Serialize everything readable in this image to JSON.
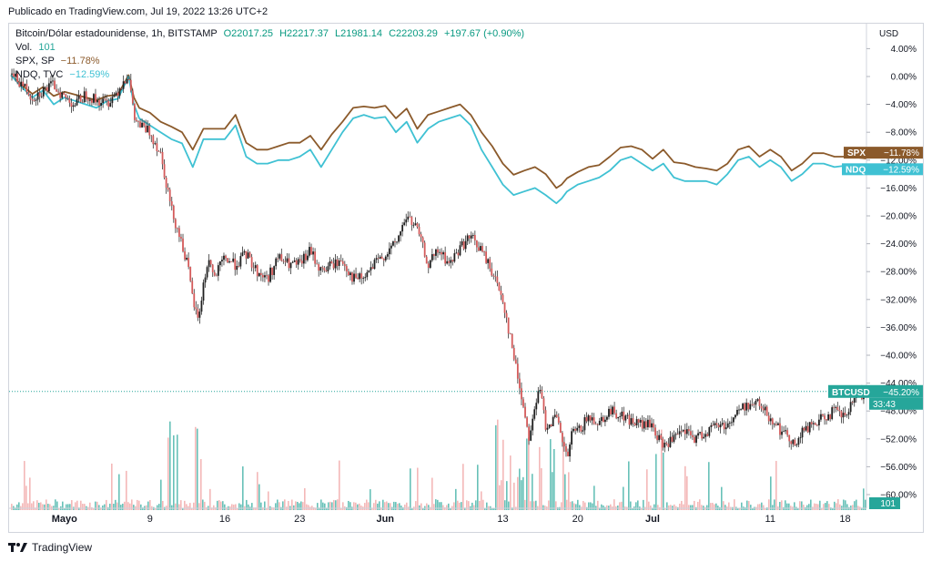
{
  "header": {
    "published": "Publicado en TradingView.com, Jul 19, 2022 13:26 UTC+2"
  },
  "legend": {
    "main": {
      "name": "Bitcoin/Dólar estadounidense, 1h, BITSTAMP",
      "open": "O22017.25",
      "high": "H22217.37",
      "low": "L21981.14",
      "close": "C22203.29",
      "change": "+197.67 (+0.90%)"
    },
    "vol": {
      "label": "Vol.",
      "value": "101"
    },
    "spx": {
      "label": "SPX, SP",
      "value": "−11.78%"
    },
    "ndq": {
      "label": "NDQ, TVC",
      "value": "−12.59%"
    }
  },
  "footer": {
    "brand": "TradingView"
  },
  "colors": {
    "btc": "#1f1f1f",
    "spx": "#8b5a2b",
    "ndq": "#3fc1d3",
    "last_price": "#26a69a",
    "vol_up": "#26a69a",
    "vol_down": "#ef9a9a"
  },
  "chart_data": {
    "type": "line",
    "title": "Bitcoin/Dólar estadounidense, 1h, BITSTAMP",
    "mode": "percentage",
    "currency_label": "USD",
    "ylim": [
      -62,
      6
    ],
    "y_ticks": [
      4,
      0,
      -4,
      -8,
      -12,
      -16,
      -20,
      -24,
      -28,
      -32,
      -36,
      -40,
      -44,
      -48,
      -52,
      -56,
      -60
    ],
    "y_tick_labels": [
      "4.00%",
      "0.00%",
      "−4.00%",
      "−8.00%",
      "−12.00%",
      "−16.00%",
      "−20.00%",
      "−24.00%",
      "−28.00%",
      "−32.00%",
      "−36.00%",
      "−40.00%",
      "−44.00%",
      "−48.00%",
      "−52.00%",
      "−56.00%",
      "−60.00%"
    ],
    "xlim": [
      0,
      80
    ],
    "x_ticks": [
      {
        "day": 5,
        "label": "Mayo",
        "bold": true
      },
      {
        "day": 13,
        "label": "9",
        "bold": false
      },
      {
        "day": 20,
        "label": "16",
        "bold": false
      },
      {
        "day": 27,
        "label": "23",
        "bold": false
      },
      {
        "day": 35,
        "label": "Jun",
        "bold": true
      },
      {
        "day": 46,
        "label": "13",
        "bold": false
      },
      {
        "day": 53,
        "label": "20",
        "bold": false
      },
      {
        "day": 60,
        "label": "Jul",
        "bold": true
      },
      {
        "day": 71,
        "label": "11",
        "bold": false
      },
      {
        "day": 78,
        "label": "18",
        "bold": false
      }
    ],
    "series": [
      {
        "name": "BTCUSD",
        "kind": "candles",
        "color": "#1f1f1f",
        "points": [
          [
            0,
            0.3
          ],
          [
            1,
            -1
          ],
          [
            2,
            -3
          ],
          [
            3,
            -2
          ],
          [
            4,
            -1.2
          ],
          [
            5,
            -3
          ],
          [
            6,
            -4
          ],
          [
            7,
            -2.5
          ],
          [
            8,
            -3.5
          ],
          [
            9,
            -3.8
          ],
          [
            10,
            -2
          ],
          [
            11,
            0.5
          ],
          [
            11.5,
            -6
          ],
          [
            12,
            -7
          ],
          [
            13,
            -8
          ],
          [
            14,
            -11
          ],
          [
            14.5,
            -15
          ],
          [
            15,
            -19
          ],
          [
            16,
            -24
          ],
          [
            16.5,
            -27
          ],
          [
            17,
            -32
          ],
          [
            17.5,
            -35
          ],
          [
            18,
            -30
          ],
          [
            18.5,
            -26
          ],
          [
            19,
            -29
          ],
          [
            20,
            -26
          ],
          [
            21,
            -27
          ],
          [
            22,
            -25.5
          ],
          [
            23,
            -28
          ],
          [
            24,
            -29
          ],
          [
            25,
            -26
          ],
          [
            26,
            -27
          ],
          [
            27,
            -27
          ],
          [
            28,
            -25
          ],
          [
            29,
            -28
          ],
          [
            30,
            -27
          ],
          [
            31,
            -26.5
          ],
          [
            32,
            -29
          ],
          [
            33,
            -29
          ],
          [
            34,
            -27
          ],
          [
            35,
            -25.5
          ],
          [
            36,
            -24
          ],
          [
            37,
            -20
          ],
          [
            38,
            -22
          ],
          [
            39,
            -27
          ],
          [
            40,
            -25
          ],
          [
            41,
            -27
          ],
          [
            42,
            -24.5
          ],
          [
            43,
            -23
          ],
          [
            44,
            -25
          ],
          [
            45,
            -28
          ],
          [
            46,
            -32
          ],
          [
            46.5,
            -36
          ],
          [
            47,
            -40
          ],
          [
            47.5,
            -44
          ],
          [
            48,
            -48
          ],
          [
            48.5,
            -52
          ],
          [
            49,
            -47
          ],
          [
            49.5,
            -45
          ],
          [
            50,
            -50
          ],
          [
            51,
            -49
          ],
          [
            51.5,
            -52
          ],
          [
            52,
            -55
          ],
          [
            52.5,
            -51
          ],
          [
            53,
            -51
          ],
          [
            54,
            -49
          ],
          [
            55,
            -49.5
          ],
          [
            56,
            -48
          ],
          [
            57,
            -48.5
          ],
          [
            58,
            -49.5
          ],
          [
            59,
            -50
          ],
          [
            60,
            -50
          ],
          [
            60.5,
            -52
          ],
          [
            61,
            -53
          ],
          [
            62,
            -52
          ],
          [
            63,
            -51
          ],
          [
            64,
            -52
          ],
          [
            65,
            -51
          ],
          [
            66,
            -50
          ],
          [
            67,
            -50
          ],
          [
            68,
            -48
          ],
          [
            69,
            -47
          ],
          [
            70,
            -47
          ],
          [
            71,
            -49
          ],
          [
            71.5,
            -49.5
          ],
          [
            72,
            -51
          ],
          [
            73,
            -52
          ],
          [
            73.5,
            -53
          ],
          [
            74,
            -51
          ],
          [
            75,
            -50
          ],
          [
            76,
            -49
          ],
          [
            77,
            -48
          ],
          [
            78,
            -49
          ],
          [
            79,
            -46
          ],
          [
            80,
            -45.2
          ]
        ]
      },
      {
        "name": "SPX",
        "kind": "line",
        "color": "#8b5a2b",
        "points": [
          [
            0,
            0.2
          ],
          [
            1,
            -1.2
          ],
          [
            2,
            -2.5
          ],
          [
            3,
            -1.5
          ],
          [
            4,
            -2.8
          ],
          [
            5,
            -2.2
          ],
          [
            6,
            -2.6
          ],
          [
            7,
            -3
          ],
          [
            8,
            -3.4
          ],
          [
            9,
            -2.8
          ],
          [
            10,
            -2.6
          ],
          [
            11,
            0.2
          ],
          [
            11.5,
            -3
          ],
          [
            12,
            -4.5
          ],
          [
            13,
            -5.2
          ],
          [
            14,
            -6.5
          ],
          [
            15,
            -7.2
          ],
          [
            16,
            -8
          ],
          [
            17,
            -10.5
          ],
          [
            18,
            -7.5
          ],
          [
            19,
            -7.5
          ],
          [
            20,
            -7.5
          ],
          [
            21,
            -5.5
          ],
          [
            22,
            -9.5
          ],
          [
            23,
            -10.5
          ],
          [
            24,
            -10.5
          ],
          [
            25,
            -10
          ],
          [
            26,
            -9.5
          ],
          [
            27,
            -9.5
          ],
          [
            28,
            -8.5
          ],
          [
            29,
            -10.5
          ],
          [
            30,
            -8.3
          ],
          [
            31,
            -6.5
          ],
          [
            32,
            -4.5
          ],
          [
            33,
            -4.3
          ],
          [
            34,
            -4.5
          ],
          [
            35,
            -4.2
          ],
          [
            36,
            -6
          ],
          [
            37,
            -4.6
          ],
          [
            38,
            -7.5
          ],
          [
            39,
            -5.5
          ],
          [
            40,
            -5
          ],
          [
            41,
            -4.5
          ],
          [
            42,
            -4
          ],
          [
            43,
            -5.5
          ],
          [
            44,
            -8
          ],
          [
            45,
            -10
          ],
          [
            46,
            -12.5
          ],
          [
            47,
            -14.1
          ],
          [
            48,
            -13.5
          ],
          [
            49,
            -13
          ],
          [
            50,
            -14
          ],
          [
            51,
            -16
          ],
          [
            51.5,
            -15.5
          ],
          [
            52,
            -14.6
          ],
          [
            53,
            -13.7
          ],
          [
            54,
            -13
          ],
          [
            55,
            -12.7
          ],
          [
            56,
            -11.5
          ],
          [
            57,
            -10.2
          ],
          [
            58,
            -10
          ],
          [
            59,
            -10.5
          ],
          [
            60,
            -11.8
          ],
          [
            61,
            -10.5
          ],
          [
            62,
            -12.3
          ],
          [
            63,
            -12.5
          ],
          [
            64,
            -13
          ],
          [
            65,
            -13.2
          ],
          [
            66,
            -13.5
          ],
          [
            67,
            -12.5
          ],
          [
            68,
            -10.5
          ],
          [
            69,
            -10
          ],
          [
            70,
            -11.5
          ],
          [
            71,
            -10.5
          ],
          [
            72,
            -11.5
          ],
          [
            73,
            -13.5
          ],
          [
            74,
            -12.5
          ],
          [
            75,
            -11
          ],
          [
            76,
            -11
          ],
          [
            77,
            -11.5
          ],
          [
            78,
            -11.5
          ],
          [
            79,
            -11.6
          ],
          [
            80,
            -11.78
          ]
        ]
      },
      {
        "name": "NDQ",
        "kind": "line",
        "color": "#3fc1d3",
        "points": [
          [
            0,
            0.2
          ],
          [
            1,
            -1.5
          ],
          [
            2,
            -3
          ],
          [
            3,
            -2
          ],
          [
            4,
            -4
          ],
          [
            5,
            -3
          ],
          [
            6,
            -3.5
          ],
          [
            7,
            -4
          ],
          [
            8,
            -4.5
          ],
          [
            9,
            -3.5
          ],
          [
            10,
            -3.2
          ],
          [
            11,
            0
          ],
          [
            11.5,
            -4
          ],
          [
            12,
            -6
          ],
          [
            13,
            -7
          ],
          [
            14,
            -8
          ],
          [
            15,
            -9
          ],
          [
            16,
            -9.6
          ],
          [
            17,
            -13
          ],
          [
            18,
            -9
          ],
          [
            19,
            -9
          ],
          [
            20,
            -9
          ],
          [
            21,
            -7
          ],
          [
            22,
            -11.5
          ],
          [
            23,
            -12.5
          ],
          [
            24,
            -12.5
          ],
          [
            25,
            -12
          ],
          [
            26,
            -12
          ],
          [
            27,
            -11.5
          ],
          [
            28,
            -10.5
          ],
          [
            29,
            -13
          ],
          [
            30,
            -10.5
          ],
          [
            31,
            -8
          ],
          [
            32,
            -6
          ],
          [
            33,
            -5.5
          ],
          [
            34,
            -6
          ],
          [
            35,
            -5.8
          ],
          [
            36,
            -8
          ],
          [
            37,
            -6.5
          ],
          [
            38,
            -9.5
          ],
          [
            39,
            -7.5
          ],
          [
            40,
            -6.5
          ],
          [
            41,
            -6
          ],
          [
            42,
            -5.5
          ],
          [
            43,
            -7
          ],
          [
            44,
            -10.5
          ],
          [
            45,
            -13
          ],
          [
            46,
            -15.5
          ],
          [
            47,
            -17
          ],
          [
            48,
            -16.5
          ],
          [
            49,
            -16
          ],
          [
            50,
            -17
          ],
          [
            51,
            -18.2
          ],
          [
            51.5,
            -17.5
          ],
          [
            52,
            -16.5
          ],
          [
            53,
            -15.5
          ],
          [
            54,
            -15
          ],
          [
            55,
            -14.5
          ],
          [
            56,
            -13.5
          ],
          [
            57,
            -12
          ],
          [
            58,
            -11.5
          ],
          [
            59,
            -12.5
          ],
          [
            60,
            -13.5
          ],
          [
            61,
            -12.5
          ],
          [
            62,
            -14.5
          ],
          [
            63,
            -15
          ],
          [
            64,
            -15
          ],
          [
            65,
            -15
          ],
          [
            66,
            -15.5
          ],
          [
            67,
            -14
          ],
          [
            68,
            -12
          ],
          [
            69,
            -11.5
          ],
          [
            70,
            -13
          ],
          [
            71,
            -12
          ],
          [
            72,
            -13
          ],
          [
            73,
            -15
          ],
          [
            74,
            -14
          ],
          [
            75,
            -12.5
          ],
          [
            76,
            -12.5
          ],
          [
            77,
            -13
          ],
          [
            78,
            -12.8
          ],
          [
            79,
            -12.7
          ],
          [
            80,
            -12.59
          ]
        ]
      },
      {
        "name": "Vol.",
        "kind": "volume",
        "last": 101
      }
    ],
    "price_badges": {
      "spx": {
        "label": "SPX",
        "value": "−11.78%"
      },
      "ndq": {
        "label": "NDQ",
        "value": "−12.59%"
      },
      "btc": {
        "label": "BTCUSD",
        "value": "−45.20%",
        "countdown": "33:43"
      },
      "vol": {
        "value": "101"
      }
    }
  }
}
